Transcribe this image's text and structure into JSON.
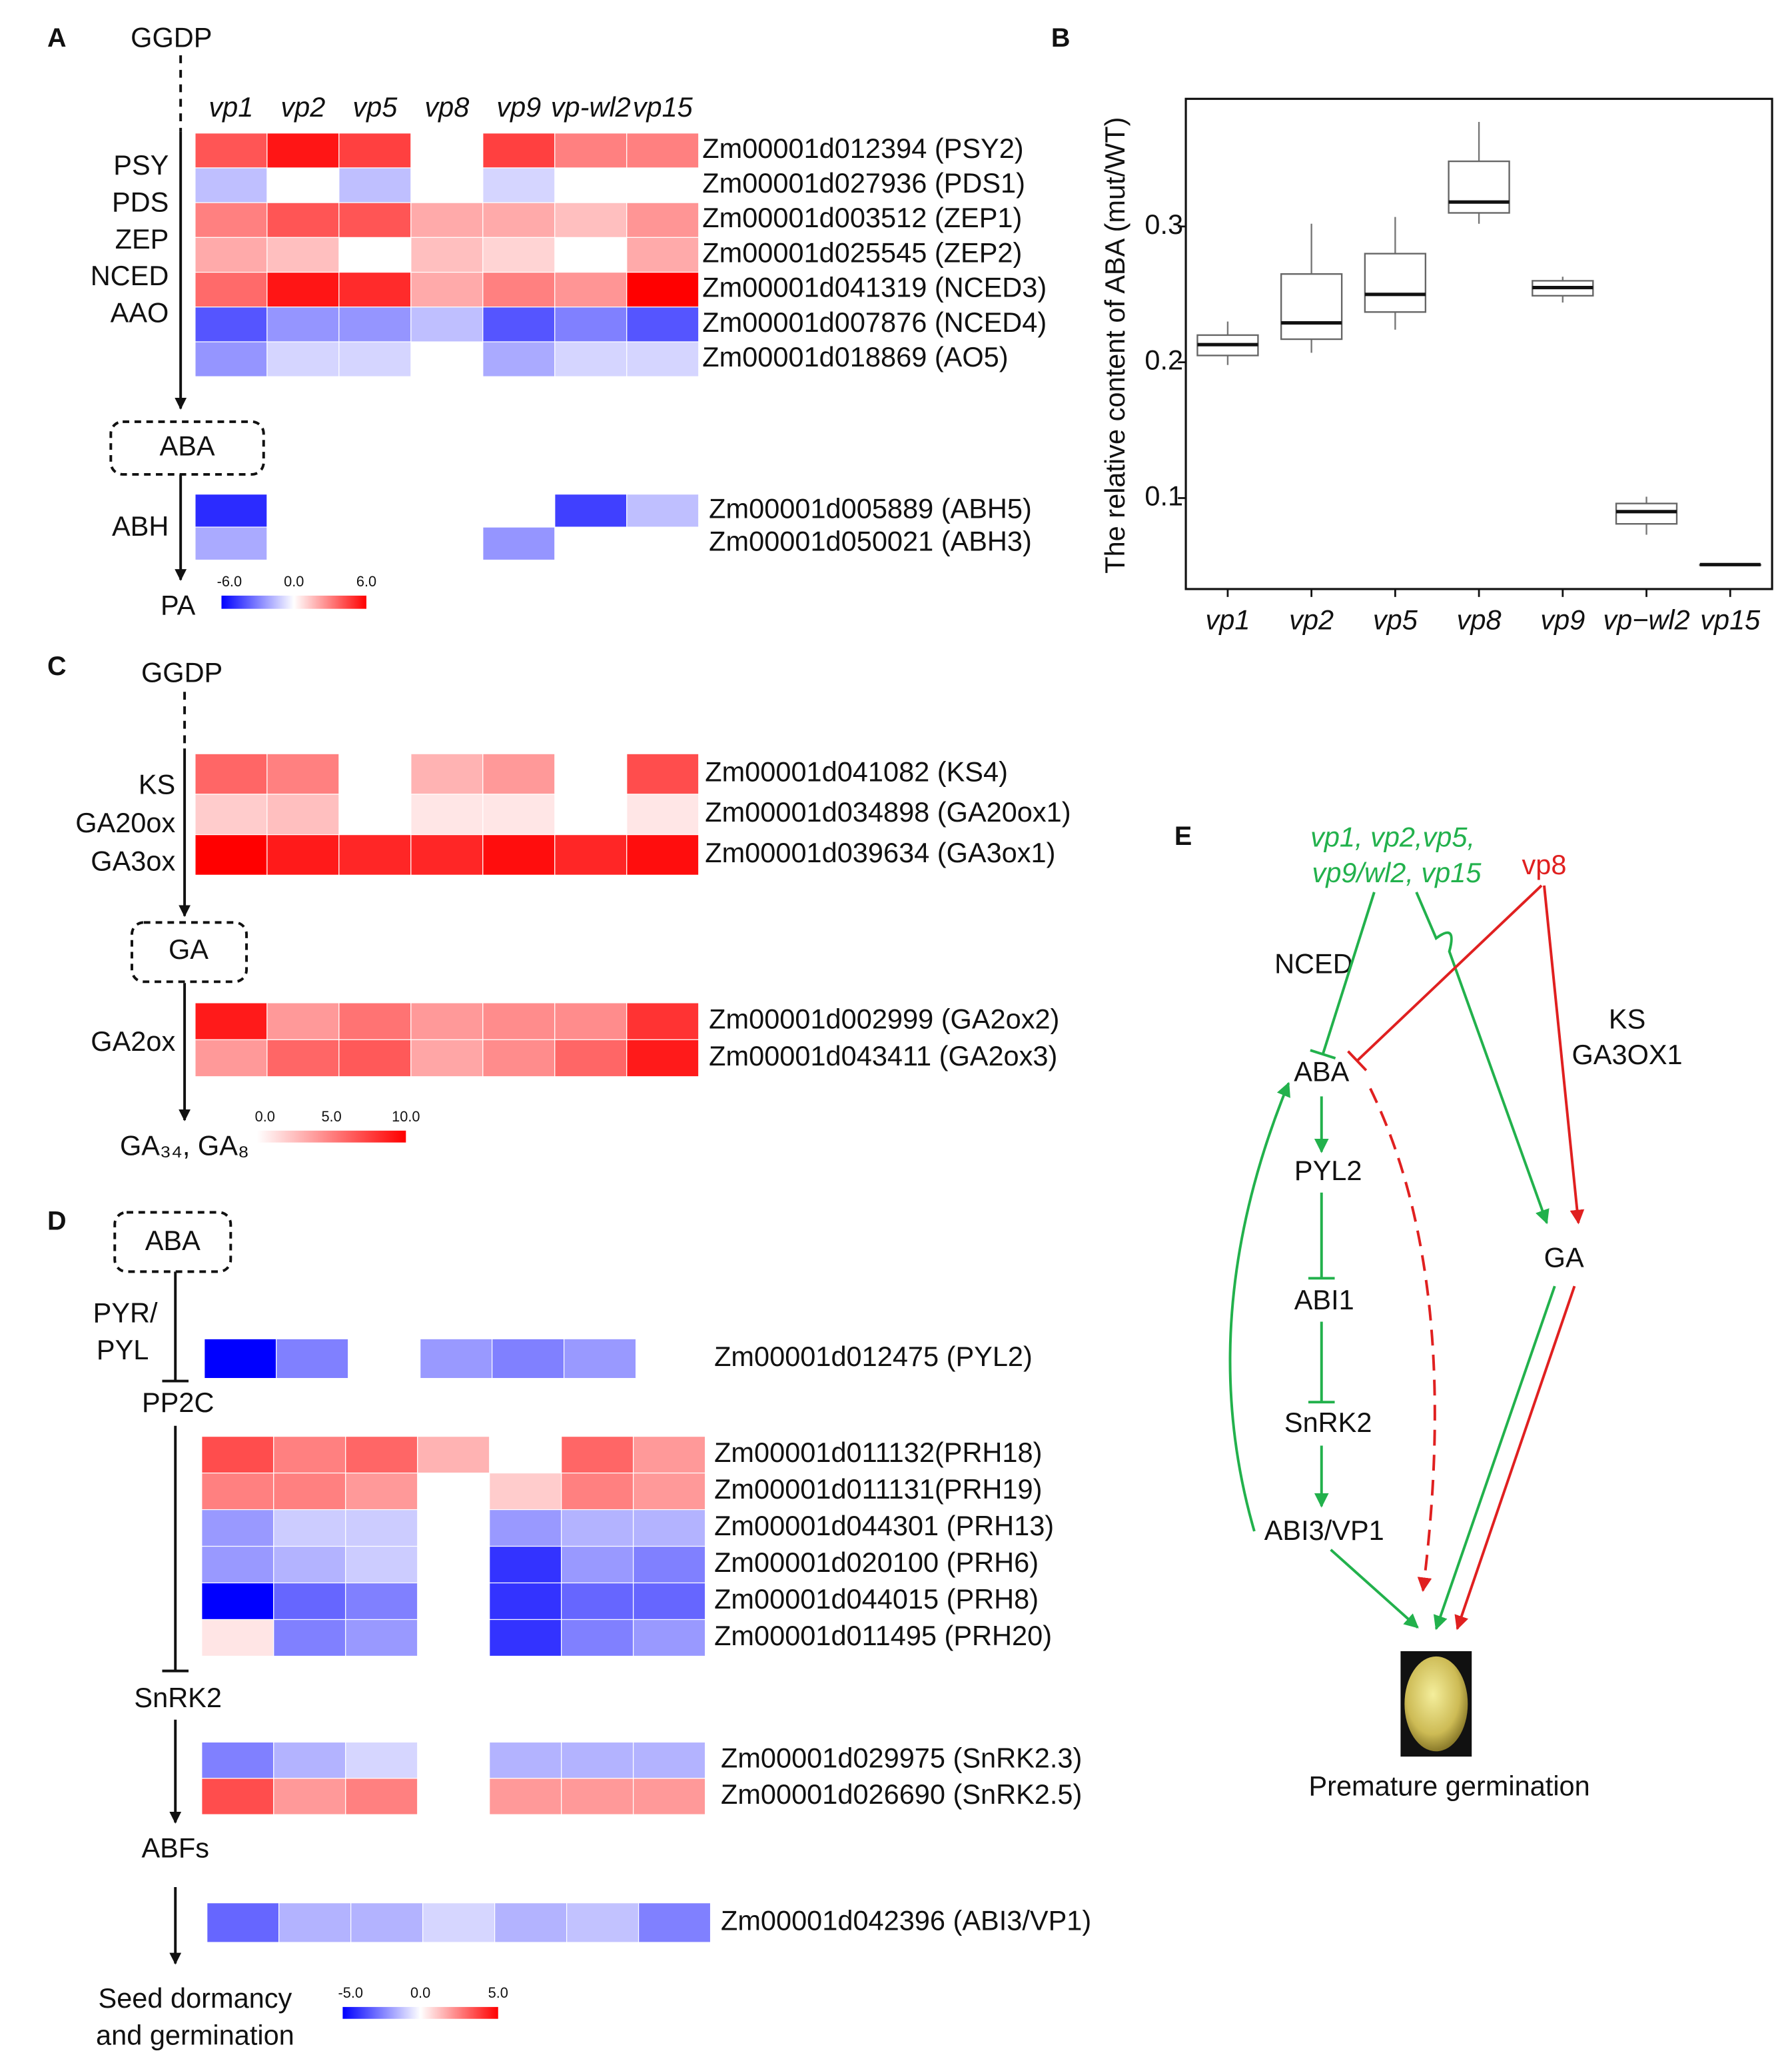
{
  "panels": [
    "A",
    "B",
    "C",
    "D",
    "E"
  ],
  "chart_data": [
    {
      "type": "heatmap",
      "columns": [
        "vp1",
        "vp2",
        "vp5",
        "vp8",
        "vp9",
        "vp-wl2",
        "vp15"
      ],
      "blocks": [
        {
          "rows": [
            "Zm00001d012394 (PSY2)",
            "Zm00001d027936 (PDS1)",
            "Zm00001d003512 (ZEP1)",
            "Zm00001d025545 (ZEP2)",
            "Zm00001d041319 (NCED3)",
            "Zm00001d007876 (NCED4)",
            "Zm00001d018869 (AO5)"
          ],
          "values": [
            [
              4,
              5.5,
              4.5,
              null,
              4.5,
              3,
              3
            ],
            [
              -1.5,
              null,
              -1.5,
              null,
              -1,
              null,
              null
            ],
            [
              3,
              4,
              4,
              2,
              2,
              1.5,
              2.5
            ],
            [
              2,
              1.5,
              null,
              1.5,
              1,
              null,
              2
            ],
            [
              3.5,
              5.5,
              5,
              2,
              3,
              2.5,
              6
            ],
            [
              -4,
              -2.5,
              -2.5,
              -1.5,
              -4,
              -3,
              -4
            ],
            [
              -2.5,
              -1,
              -1,
              null,
              -2,
              -1,
              -1
            ]
          ]
        },
        {
          "rows": [
            "Zm00001d005889 (ABH5)",
            "Zm00001d050021 (ABH3)"
          ],
          "values": [
            [
              -5,
              null,
              null,
              null,
              null,
              -4.5,
              -1.5
            ],
            [
              -2,
              null,
              null,
              null,
              -2.5,
              null,
              null
            ]
          ]
        }
      ],
      "vlim": [
        -6,
        6
      ],
      "colormap": [
        "#0000ff",
        "#ffffff",
        "#ff0000"
      ],
      "cbar_ticks": [
        {
          "value": -6,
          "label": "-6.0"
        },
        {
          "value": 0,
          "label": "0.0"
        },
        {
          "value": 6,
          "label": "6.0"
        }
      ],
      "pathway": [
        "GGDP",
        "PSY",
        "PDS",
        "ZEP",
        "NCED",
        "AAO",
        "ABA",
        "ABH",
        "PA"
      ]
    },
    {
      "type": "box",
      "ylabel": "The relative content of ABA (mut/WT)",
      "categories": [
        "vp1",
        "vp2",
        "vp5",
        "vp8",
        "vp9",
        "vp−wl2",
        "vp15"
      ],
      "boxes": [
        {
          "whislo": 0.198,
          "q1": 0.205,
          "med": 0.213,
          "q3": 0.22,
          "whishi": 0.23
        },
        {
          "whislo": 0.207,
          "q1": 0.217,
          "med": 0.229,
          "q3": 0.265,
          "whishi": 0.302
        },
        {
          "whislo": 0.224,
          "q1": 0.237,
          "med": 0.25,
          "q3": 0.28,
          "whishi": 0.307
        },
        {
          "whislo": 0.302,
          "q1": 0.31,
          "med": 0.318,
          "q3": 0.348,
          "whishi": 0.377
        },
        {
          "whislo": 0.244,
          "q1": 0.249,
          "med": 0.255,
          "q3": 0.26,
          "whishi": 0.263
        },
        {
          "whislo": 0.073,
          "q1": 0.081,
          "med": 0.09,
          "q3": 0.096,
          "whishi": 0.101
        },
        {
          "whislo": 0.051,
          "q1": 0.051,
          "med": 0.051,
          "q3": 0.051,
          "whishi": 0.051
        }
      ],
      "ylim": [
        0.033,
        0.394
      ],
      "yticks": [
        0.1,
        0.2,
        0.3
      ]
    },
    {
      "type": "heatmap",
      "blocks": [
        {
          "rows": [
            "Zm00001d041082 (KS4)",
            "Zm00001d034898 (GA20ox1)",
            "Zm00001d039634 (GA3ox1)"
          ],
          "values": [
            [
              6,
              5,
              null,
              3,
              4,
              null,
              7
            ],
            [
              2,
              2.5,
              null,
              1,
              1,
              null,
              1
            ],
            [
              10,
              9,
              8.5,
              8.5,
              9.5,
              8.5,
              9.5
            ]
          ]
        },
        {
          "rows": [
            "Zm00001d002999 (GA2ox2)",
            "Zm00001d043411 (GA2ox3)"
          ],
          "values": [
            [
              9,
              4,
              5.5,
              4,
              4.5,
              4.5,
              8
            ],
            [
              4,
              6,
              6.5,
              3.5,
              4.5,
              6,
              9
            ]
          ]
        }
      ],
      "vlim": [
        0,
        10
      ],
      "colormap": [
        "#ffffff",
        "#ff0000"
      ],
      "cbar_ticks": [
        {
          "value": 0,
          "label": "0.0"
        },
        {
          "value": 5,
          "label": "5.0"
        },
        {
          "value": 10,
          "label": "10.0"
        }
      ],
      "pathway": [
        "GGDP",
        "KS",
        "GA20ox",
        "GA3ox",
        "GA",
        "GA2ox",
        "GA₃₄, GA₈"
      ]
    },
    {
      "type": "heatmap",
      "blocks": [
        {
          "rows": [
            "Zm00001d012475 (PYL2)"
          ],
          "values": [
            [
              -6,
              -2.5,
              null,
              -2,
              -2.5,
              -2,
              null
            ]
          ]
        },
        {
          "rows": [
            "Zm00001d011132(PRH18)",
            "Zm00001d011131(PRH19)",
            "Zm00001d044301 (PRH13)",
            "Zm00001d020100 (PRH6)",
            "Zm00001d044015 (PRH8)",
            "Zm00001d011495 (PRH20)"
          ],
          "values": [
            [
              3.5,
              2.5,
              3,
              1.5,
              null,
              3,
              2
            ],
            [
              2.5,
              2.5,
              2,
              null,
              1,
              2.5,
              2
            ],
            [
              -2,
              -1,
              -1,
              null,
              -2,
              -1.5,
              -1.5
            ],
            [
              -2,
              -1.5,
              -1,
              null,
              -4,
              -2,
              -2.5
            ],
            [
              -5,
              -3,
              -2.5,
              null,
              -4,
              -3,
              -3
            ],
            [
              0.5,
              -2.5,
              -2,
              null,
              -4,
              -2.5,
              -2
            ]
          ]
        },
        {
          "rows": [
            "Zm00001d029975 (SnRK2.3)",
            "Zm00001d026690 (SnRK2.5)"
          ],
          "values": [
            [
              -2.5,
              -1.5,
              -0.8,
              null,
              -1.5,
              -1.5,
              -1.5
            ],
            [
              3.5,
              2,
              2.5,
              null,
              2,
              2,
              2
            ]
          ]
        },
        {
          "rows": [
            "Zm00001d042396 (ABI3/VP1)"
          ],
          "values": [
            [
              -3,
              -1.5,
              -1.5,
              -0.8,
              -1.5,
              -1.2,
              -2.5
            ]
          ]
        }
      ],
      "vlim": [
        -5,
        5
      ],
      "colormap": [
        "#0000ff",
        "#ffffff",
        "#ff0000"
      ],
      "cbar_ticks": [
        {
          "value": -5,
          "label": "-5.0"
        },
        {
          "value": 0,
          "label": "0.0"
        },
        {
          "value": 5,
          "label": "5.0"
        }
      ],
      "pathway": [
        "ABA",
        "PYR/",
        "PYL",
        "PP2C",
        "SnRK2",
        "ABFs",
        "Seed dormancy",
        "and germination"
      ]
    }
  ],
  "diagram": {
    "labels": [
      "vp1, vp2,vp5,",
      "vp9/wl2, vp15",
      "vp8",
      "NCED",
      "KS",
      "GA3OX1",
      "ABA",
      "PYL2",
      "ABI1",
      "SnRK2",
      "ABI3/VP1",
      "GA",
      "Premature germination"
    ]
  }
}
